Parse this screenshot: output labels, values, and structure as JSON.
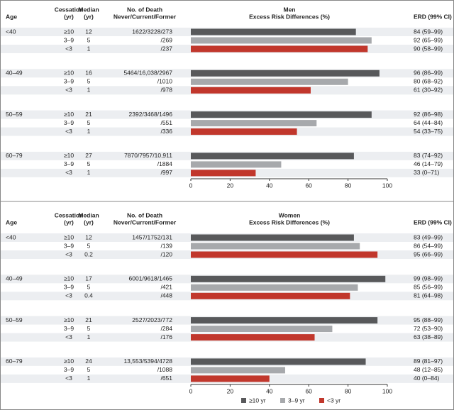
{
  "chart_data": [
    {
      "type": "bar",
      "title": "Men",
      "subtitle": "Excess Risk Differences (%)",
      "column_headers": [
        [
          "Age"
        ],
        [
          "Cessation",
          "(yr)"
        ],
        [
          "Median",
          "(yr)"
        ],
        [
          "No. of Death",
          "Never/Current/Former"
        ],
        [
          "ERD (99% CI)"
        ]
      ],
      "categories": [
        "<40",
        "40–49",
        "50–59",
        "60–79"
      ],
      "series": [
        {
          "cessation": "≥10",
          "color": "#58595b",
          "values": [
            84,
            96,
            92,
            83
          ],
          "value_labels": [
            "84 (59–99)",
            "96 (86–99)",
            "92 (86–98)",
            "83 (74–92)"
          ],
          "median": [
            12,
            16,
            21,
            27
          ],
          "deaths": [
            "1622/3228/273",
            "5464/16,038/2967",
            "2392/3468/1496",
            "7870/7957/10,911"
          ]
        },
        {
          "cessation": "3–9",
          "color": "#a7a9ac",
          "values": [
            92,
            80,
            64,
            46
          ],
          "value_labels": [
            "92 (65–99)",
            "80 (68–92)",
            "64 (44–84)",
            "46 (14–79)"
          ],
          "median": [
            5,
            5,
            5,
            5
          ],
          "deaths": [
            "/269",
            "/1010",
            "/551",
            "/1884"
          ]
        },
        {
          "cessation": "<3",
          "color": "#c1372c",
          "values": [
            90,
            61,
            54,
            33
          ],
          "value_labels": [
            "90 (58–99)",
            "61 (30–92)",
            "54 (33–75)",
            "33 (0–71)"
          ],
          "median": [
            1,
            1,
            1,
            1
          ],
          "deaths": [
            "/237",
            "/978",
            "/336",
            "/997"
          ]
        }
      ],
      "xlim": [
        0,
        100
      ],
      "xticks": [
        0,
        20,
        40,
        60,
        80,
        100
      ]
    },
    {
      "type": "bar",
      "title": "Women",
      "subtitle": "Excess Risk Differences (%)",
      "column_headers": [
        [
          "Age"
        ],
        [
          "Cessation",
          "(yr)"
        ],
        [
          "Median",
          "(yr)"
        ],
        [
          "No. of Death",
          "Never/Current/Former"
        ],
        [
          "ERD (99% CI)"
        ]
      ],
      "categories": [
        "<40",
        "40–49",
        "50–59",
        "60–79"
      ],
      "series": [
        {
          "name": "≥10 yr",
          "cessation": "≥10",
          "color": "#58595b",
          "values": [
            83,
            99,
            95,
            89
          ],
          "value_labels": [
            "83 (49–99)",
            "99 (98–99)",
            "95 (88–99)",
            "89 (81–97)"
          ],
          "median": [
            12,
            17,
            21,
            24
          ],
          "deaths": [
            "1457/1752/131",
            "6001/9618/1465",
            "2527/2023/772",
            "13,553/5394/4728"
          ]
        },
        {
          "name": "3–9 yr",
          "cessation": "3–9",
          "color": "#a7a9ac",
          "values": [
            86,
            85,
            72,
            48
          ],
          "value_labels": [
            "86 (54–99)",
            "85 (56–99)",
            "72 (53–90)",
            "48 (12–85)"
          ],
          "median": [
            5,
            5,
            5,
            5
          ],
          "deaths": [
            "/139",
            "/421",
            "/284",
            "/1088"
          ]
        },
        {
          "name": "<3 yr",
          "cessation": "<3",
          "color": "#c1372c",
          "values": [
            95,
            81,
            63,
            40
          ],
          "value_labels": [
            "95 (66–99)",
            "81 (64–98)",
            "63 (38–89)",
            "40 (0–84)"
          ],
          "median": [
            0.2,
            0.4,
            1,
            1
          ],
          "deaths": [
            "/120",
            "/448",
            "/176",
            "/651"
          ]
        }
      ],
      "xlim": [
        0,
        100
      ],
      "xticks": [
        0,
        20,
        40,
        60,
        80,
        100
      ]
    }
  ]
}
